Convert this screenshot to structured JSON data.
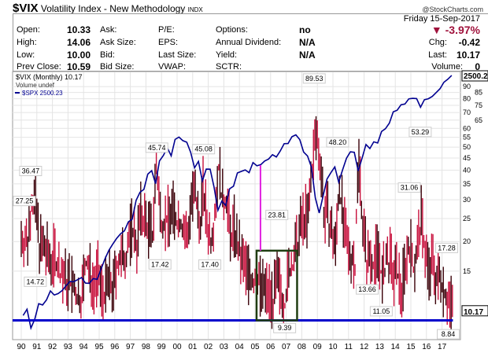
{
  "header": {
    "symbol": "$VIX",
    "name": "Volatility Index - New Methodology",
    "exchange": "INDX",
    "credit": "@StockCharts.com"
  },
  "quote": {
    "date": "Friday  15-Sep-2017",
    "pct_change": "▼ -3.97%",
    "open_label": "Open:",
    "open": "10.33",
    "high_label": "High:",
    "high": "14.06",
    "low_label": "Low:",
    "low": "10.00",
    "prev_label": "Prev Close:",
    "prev": "10.59",
    "ask_label": "Ask:",
    "asksize_label": "Ask Size:",
    "bid_label": "Bid:",
    "bidsize_label": "Bid Size:",
    "pe_label": "P/E:",
    "eps_label": "EPS:",
    "lastsize_label": "Last Size:",
    "vwap_label": "VWAP:",
    "options_label": "Options:",
    "options": "no",
    "div_label": "Annual Dividend:",
    "div": "N/A",
    "yield_label": "Yield:",
    "yield": "N/A",
    "sctr_label": "SCTR:",
    "chg_label": "Chg:",
    "chg": "-0.42",
    "last_label": "Last:",
    "last": "10.17",
    "volume_label": "Volume:",
    "volume": "0"
  },
  "colors": {
    "vix_up": "#c8103c",
    "vix_down": "#3a0008",
    "spx": "#000090",
    "support": "#0000cc",
    "box": "#1f3d12",
    "magenta": "#e020e0"
  },
  "chart_data": {
    "type": "line",
    "title": "$VIX (Monthly) 10.17",
    "legend": [
      "$VIX (Monthly) 10.17",
      "Volume undef",
      "$SPX 2500.23"
    ],
    "legend_placement": "top-left",
    "x_start": 1990,
    "frequency": "quarterly",
    "x_ticks": [
      "90",
      "91",
      "92",
      "93",
      "94",
      "95",
      "96",
      "97",
      "98",
      "99",
      "00",
      "01",
      "02",
      "03",
      "04",
      "05",
      "06",
      "07",
      "08",
      "09",
      "10",
      "11",
      "12",
      "13",
      "14",
      "15",
      "16",
      "17"
    ],
    "y_ticks": [
      15,
      20,
      25,
      30,
      35,
      40,
      45,
      50,
      55,
      60,
      65,
      70,
      75,
      80,
      85,
      90
    ],
    "y_scale": "log",
    "ylim": [
      8,
      95
    ],
    "vix_close": [
      20,
      19,
      30,
      27,
      19,
      18,
      17,
      16,
      17,
      15,
      14,
      13,
      13,
      12,
      11,
      12,
      16,
      14,
      13,
      14,
      12,
      12,
      13,
      12,
      16,
      16,
      17,
      20,
      22,
      19,
      25,
      24,
      22,
      20,
      40,
      25,
      24,
      24,
      26,
      24,
      24,
      22,
      20,
      29,
      30,
      22,
      32,
      23,
      20,
      26,
      40,
      28,
      30,
      20,
      22,
      18,
      16,
      15,
      14,
      13,
      14,
      12,
      12,
      12,
      11,
      13,
      12,
      11,
      14,
      16,
      18,
      22,
      25,
      24,
      40,
      55,
      45,
      26,
      25,
      21,
      18,
      34,
      23,
      18,
      17,
      16,
      42,
      23,
      16,
      17,
      16,
      18,
      13,
      16,
      16,
      14,
      14,
      12,
      16,
      19,
      15,
      18,
      24,
      18,
      14,
      16,
      13,
      14,
      12,
      11,
      10.17
    ],
    "spx_close": [
      340,
      358,
      306,
      330,
      375,
      371,
      387,
      417,
      403,
      408,
      418,
      435,
      451,
      450,
      458,
      466,
      445,
      444,
      462,
      459,
      500,
      544,
      584,
      615,
      645,
      670,
      687,
      740,
      757,
      885,
      947,
      970,
      1101,
      1133,
      1017,
      1229,
      1286,
      1372,
      1282,
      1469,
      1498,
      1454,
      1436,
      1320,
      1160,
      1224,
      1040,
      1148,
      1147,
      989,
      815,
      880,
      848,
      975,
      996,
      1112,
      1126,
      1140,
      1114,
      1212,
      1180,
      1191,
      1228,
      1248,
      1294,
      1270,
      1335,
      1418,
      1420,
      1503,
      1526,
      1468,
      1322,
      1280,
      1166,
      903,
      797,
      919,
      1057,
      1115,
      1169,
      1030,
      1141,
      1257,
      1325,
      1320,
      1131,
      1257,
      1408,
      1362,
      1440,
      1426,
      1569,
      1606,
      1682,
      1848,
      1872,
      1960,
      1972,
      2059,
      2067,
      2063,
      1920,
      2044,
      2060,
      2099,
      2168,
      2239,
      2363,
      2423,
      2500.23
    ],
    "spx_last_label": "2500.2",
    "vix_last_label": "10.17",
    "annotations": [
      {
        "text": "36.47",
        "t": 1990.6,
        "v": 36.47,
        "pos": "above"
      },
      {
        "text": "27.25",
        "t": 1990.2,
        "v": 27.25,
        "pos": "above"
      },
      {
        "text": "14.72",
        "t": 1990.9,
        "v": 14.72,
        "pos": "below"
      },
      {
        "text": "45.74",
        "t": 1998.7,
        "v": 45.74,
        "pos": "above"
      },
      {
        "text": "17.42",
        "t": 1998.9,
        "v": 17.42,
        "pos": "below"
      },
      {
        "text": "45.08",
        "t": 2001.7,
        "v": 45.08,
        "pos": "above"
      },
      {
        "text": "17.40",
        "t": 2002.1,
        "v": 17.4,
        "pos": "below"
      },
      {
        "text": "89.53",
        "t": 2008.8,
        "v": 89.53,
        "pos": "above"
      },
      {
        "text": "23.81",
        "t": 2006.4,
        "v": 23.81,
        "pos": "above"
      },
      {
        "text": "9.39",
        "t": 2006.9,
        "v": 9.39,
        "pos": "below"
      },
      {
        "text": "48.20",
        "t": 2010.3,
        "v": 48.2,
        "pos": "above"
      },
      {
        "text": "13.66",
        "t": 2012.2,
        "v": 13.66,
        "pos": "below"
      },
      {
        "text": "11.05",
        "t": 2013.1,
        "v": 11.05,
        "pos": "below"
      },
      {
        "text": "53.29",
        "t": 2015.6,
        "v": 53.29,
        "pos": "above"
      },
      {
        "text": "31.06",
        "t": 2014.9,
        "v": 31.06,
        "pos": "above"
      },
      {
        "text": "17.28",
        "t": 2017.3,
        "v": 17.28,
        "pos": "above"
      },
      {
        "text": "8.84",
        "t": 2017.4,
        "v": 8.84,
        "pos": "below"
      }
    ],
    "support_level": 9.3,
    "highlight_box": {
      "t0": 2005.1,
      "t1": 2007.7,
      "v_low": 9.3,
      "v_high": 18.3
    },
    "marker_line": {
      "t": 2005.35,
      "v_low": 18.3,
      "v_high": 42
    }
  }
}
